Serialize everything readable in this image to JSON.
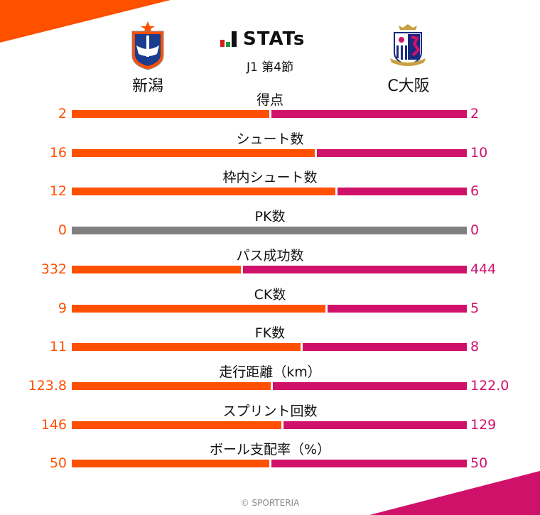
{
  "header": {
    "brand": "STATs",
    "round": "J1 第4節",
    "home_team": "新潟",
    "away_team": "C大阪",
    "home_logo_icon": "albirex-niigata-crest-icon",
    "away_logo_icon": "cerezo-osaka-crest-icon",
    "brand_icon": "bar-chart-icon"
  },
  "colors": {
    "home": "#ff5000",
    "away": "#d0116a",
    "neutral": "#808080"
  },
  "footer": {
    "copyright": "© SPORTERIA"
  },
  "stats": [
    {
      "label": "得点",
      "home": "2",
      "away": "2"
    },
    {
      "label": "シュート数",
      "home": "16",
      "away": "10"
    },
    {
      "label": "枠内シュート数",
      "home": "12",
      "away": "6"
    },
    {
      "label": "PK数",
      "home": "0",
      "away": "0"
    },
    {
      "label": "パス成功数",
      "home": "332",
      "away": "444"
    },
    {
      "label": "CK数",
      "home": "9",
      "away": "5"
    },
    {
      "label": "FK数",
      "home": "11",
      "away": "8"
    },
    {
      "label": "走行距離（km）",
      "home": "123.8",
      "away": "122.0"
    },
    {
      "label": "スプリント回数",
      "home": "146",
      "away": "129"
    },
    {
      "label": "ボール支配率（%）",
      "home": "50",
      "away": "50"
    }
  ],
  "chart_data": {
    "type": "bar",
    "title": "STATs J1 第4節",
    "categories": [
      "得点",
      "シュート数",
      "枠内シュート数",
      "PK数",
      "パス成功数",
      "CK数",
      "FK数",
      "走行距離（km）",
      "スプリント回数",
      "ボール支配率（%）"
    ],
    "series": [
      {
        "name": "新潟",
        "values": [
          2,
          16,
          12,
          0,
          332,
          9,
          11,
          123.8,
          146,
          50
        ]
      },
      {
        "name": "C大阪",
        "values": [
          2,
          10,
          6,
          0,
          444,
          5,
          8,
          122.0,
          129,
          50
        ]
      }
    ],
    "orientation": "horizontal-diverging",
    "legend": "team names above",
    "grid": false
  }
}
